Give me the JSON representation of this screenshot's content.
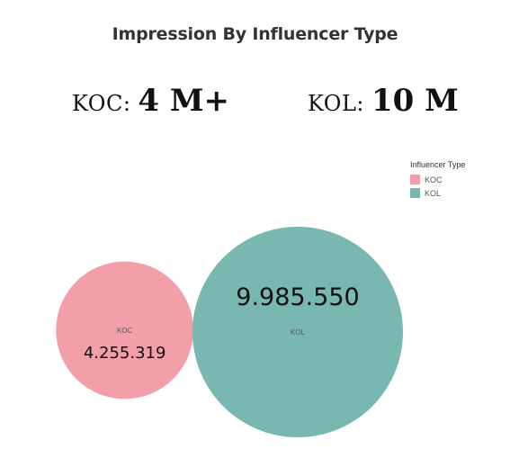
{
  "title": "Impression By Influencer Type",
  "summary": [
    {
      "label": "KOC:",
      "value": "4 M+"
    },
    {
      "label": "KOL:",
      "value": "10 M"
    }
  ],
  "legend": {
    "title": "Influencer Type",
    "placement": "top-right"
  },
  "chart_data": {
    "type": "bubble",
    "title": "Impression By Influencer Type",
    "series": [
      {
        "name": "KOC",
        "value": 4255319,
        "value_label": "4.255.319",
        "color": "#f29fa9"
      },
      {
        "name": "KOL",
        "value": 9985550,
        "value_label": "9.985.550",
        "color": "#78b8b0"
      }
    ]
  }
}
